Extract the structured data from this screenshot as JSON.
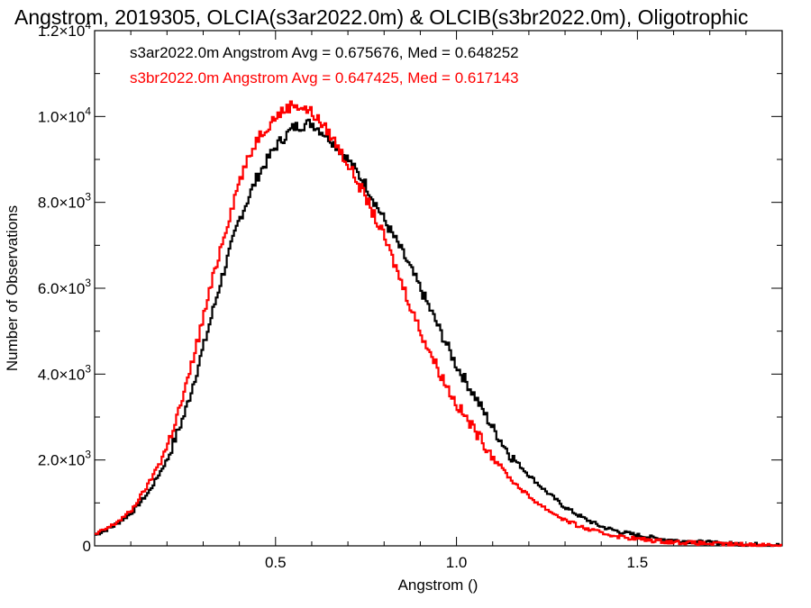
{
  "chart_data": {
    "type": "line",
    "step": true,
    "title": "Angstrom, 2019305, OLCIA(s3ar2022.0m) & OLCIB(s3br2022.0m), Oligotrophic",
    "xlabel": "Angstrom ()",
    "ylabel": "Number of Observations",
    "xlim": [
      0.0,
      1.9
    ],
    "ylim": [
      0,
      12000
    ],
    "x_ticks": [
      {
        "value": 0.5,
        "label": "0.5"
      },
      {
        "value": 1.0,
        "label": "1.0"
      },
      {
        "value": 1.5,
        "label": "1.5"
      }
    ],
    "y_ticks": [
      {
        "value": 0,
        "mant": "0",
        "exp": ""
      },
      {
        "value": 2000,
        "mant": "2.0×10",
        "exp": "3"
      },
      {
        "value": 4000,
        "mant": "4.0×10",
        "exp": "3"
      },
      {
        "value": 6000,
        "mant": "6.0×10",
        "exp": "3"
      },
      {
        "value": 8000,
        "mant": "8.0×10",
        "exp": "3"
      },
      {
        "value": 10000,
        "mant": "1.0×10",
        "exp": "4"
      },
      {
        "value": 12000,
        "mant": "1.2×10",
        "exp": "4"
      }
    ],
    "grid": false,
    "legend_position": "top-left",
    "series": [
      {
        "name": "s3ar2022.0m",
        "color": "#000000",
        "legend_text": "s3ar2022.0m Angstrom Avg = 0.675676, Med = 0.648252",
        "x": [
          0.0,
          0.05,
          0.1,
          0.15,
          0.2,
          0.25,
          0.3,
          0.35,
          0.4,
          0.45,
          0.5,
          0.55,
          0.6,
          0.65,
          0.7,
          0.75,
          0.8,
          0.85,
          0.9,
          0.95,
          1.0,
          1.05,
          1.1,
          1.15,
          1.2,
          1.25,
          1.3,
          1.35,
          1.4,
          1.45,
          1.5,
          1.55,
          1.6,
          1.65,
          1.7,
          1.75,
          1.8,
          1.85,
          1.9
        ],
        "y": [
          250,
          450,
          750,
          1250,
          2000,
          3100,
          4600,
          6200,
          7600,
          8600,
          9300,
          9750,
          9850,
          9500,
          9000,
          8400,
          7600,
          6850,
          6000,
          5100,
          4200,
          3500,
          2750,
          2100,
          1650,
          1250,
          900,
          650,
          450,
          330,
          250,
          180,
          130,
          100,
          75,
          55,
          40,
          25,
          15
        ]
      },
      {
        "name": "s3br2022.0m",
        "color": "#ff0000",
        "legend_text": "s3br2022.0m Angstrom Avg = 0.647425, Med = 0.617143",
        "x": [
          0.0,
          0.05,
          0.1,
          0.15,
          0.2,
          0.25,
          0.3,
          0.35,
          0.4,
          0.45,
          0.5,
          0.55,
          0.6,
          0.65,
          0.7,
          0.75,
          0.8,
          0.85,
          0.9,
          0.95,
          1.0,
          1.05,
          1.1,
          1.15,
          1.2,
          1.25,
          1.3,
          1.35,
          1.4,
          1.45,
          1.5,
          1.55,
          1.6,
          1.65,
          1.7,
          1.75,
          1.8,
          1.85,
          1.9
        ],
        "y": [
          250,
          480,
          800,
          1450,
          2300,
          3600,
          5300,
          7000,
          8500,
          9500,
          10000,
          10300,
          10100,
          9600,
          8900,
          8100,
          7200,
          6100,
          5000,
          4100,
          3300,
          2700,
          2100,
          1550,
          1150,
          850,
          600,
          420,
          300,
          220,
          160,
          120,
          90,
          70,
          50,
          40,
          30,
          20,
          10
        ]
      }
    ]
  }
}
